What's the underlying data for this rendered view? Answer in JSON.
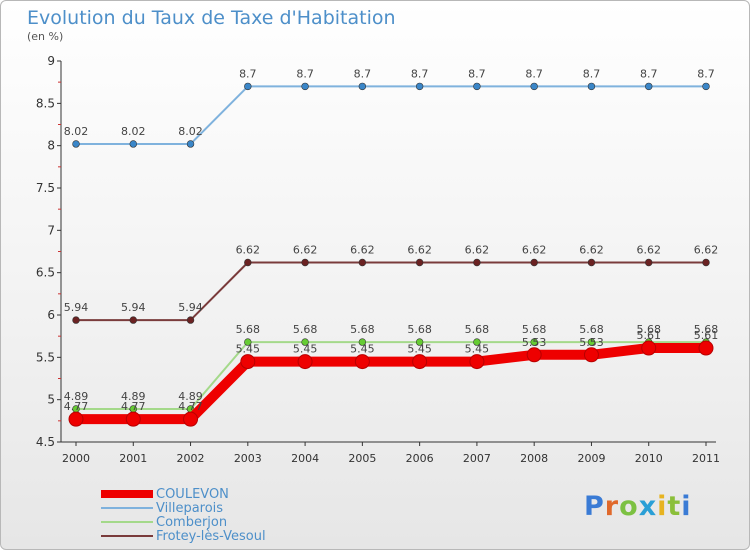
{
  "header": {
    "title": "Evolution du Taux de Taxe d'Habitation",
    "unit": "(en %)"
  },
  "brand": {
    "letters": [
      "P",
      "r",
      "o",
      "x",
      "i",
      "t",
      "i"
    ],
    "colors": [
      "#3a7bd5",
      "#e0692b",
      "#7cc142",
      "#2a9fd6",
      "#e7b320",
      "#8bbf3a",
      "#3a7bd5"
    ]
  },
  "chart_data": {
    "type": "line",
    "title": "Evolution du Taux de Taxe d'Habitation",
    "ylabel": "(en %)",
    "xlabel": "",
    "x": [
      "2000",
      "2001",
      "2002",
      "2003",
      "2004",
      "2005",
      "2006",
      "2007",
      "2008",
      "2009",
      "2010",
      "2011"
    ],
    "ylim": [
      4.5,
      9
    ],
    "yticks": [
      4.5,
      5,
      5.5,
      6,
      6.5,
      7,
      7.5,
      8,
      8.5,
      9
    ],
    "grid": false,
    "legend_position": "bottom-left",
    "series": [
      {
        "name": "Villeparois",
        "color": "#7fb2dd",
        "marker": "#3a86c8",
        "values": [
          8.02,
          8.02,
          8.02,
          8.7,
          8.7,
          8.7,
          8.7,
          8.7,
          8.7,
          8.7,
          8.7,
          8.7
        ],
        "labels": [
          "8.02",
          "8.02",
          "8.02",
          "8.7",
          "8.7",
          "8.7",
          "8.7",
          "8.7",
          "8.7",
          "8.7",
          "8.7",
          "8.7"
        ]
      },
      {
        "name": "Frotey-lès-Vesoul",
        "color": "#7a3b3b",
        "marker": "#6b2222",
        "values": [
          5.94,
          5.94,
          5.94,
          6.62,
          6.62,
          6.62,
          6.62,
          6.62,
          6.62,
          6.62,
          6.62,
          6.62
        ],
        "labels": [
          "5.94",
          "5.94",
          "5.94",
          "6.62",
          "6.62",
          "6.62",
          "6.62",
          "6.62",
          "6.62",
          "6.62",
          "6.62",
          "6.62"
        ]
      },
      {
        "name": "Comberjon",
        "color": "#a4d98a",
        "marker": "#66cc33",
        "values": [
          4.89,
          4.89,
          4.89,
          5.68,
          5.68,
          5.68,
          5.68,
          5.68,
          5.68,
          5.68,
          5.68,
          5.68
        ],
        "labels": [
          "4.89",
          "4.89",
          "4.89",
          "5.68",
          "5.68",
          "5.68",
          "5.68",
          "5.68",
          "5.68",
          "5.68",
          "5.68",
          "5.68"
        ]
      },
      {
        "name": "COULEVON",
        "color": "#ee0000",
        "marker": "#ee0000",
        "values": [
          4.77,
          4.77,
          4.77,
          5.45,
          5.45,
          5.45,
          5.45,
          5.45,
          5.53,
          5.53,
          5.61,
          5.61
        ],
        "labels": [
          "4.77",
          "4.77",
          "4.77",
          "5.45",
          "5.45",
          "5.45",
          "5.45",
          "5.45",
          "5.53",
          "5.53",
          "5.61",
          "5.61"
        ]
      }
    ],
    "legend": [
      "COULEVON",
      "Villeparois",
      "Comberjon",
      "Frotey-lès-Vesoul"
    ]
  }
}
